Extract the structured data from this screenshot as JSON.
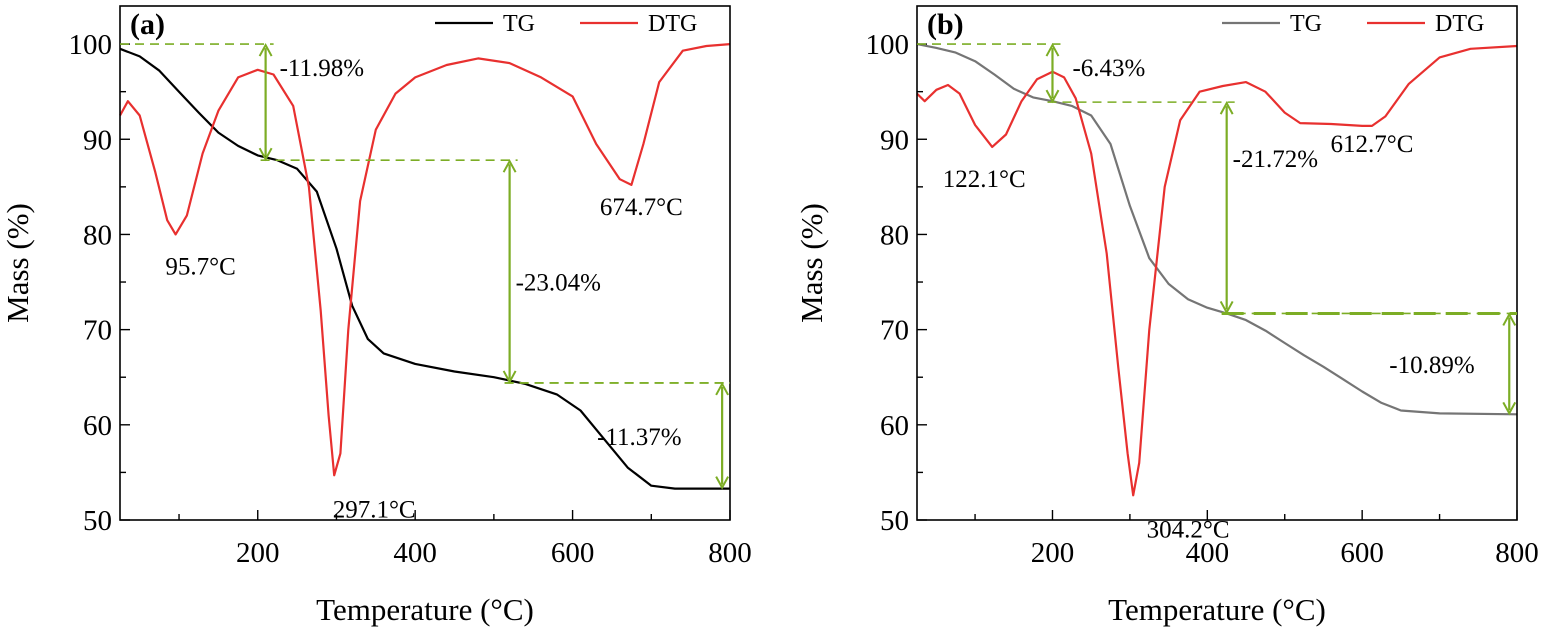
{
  "chart_data": [
    {
      "type": "line",
      "panel_label": "(a)",
      "xlabel": "Temperature (°C)",
      "ylabel": "Mass (%)",
      "xlim": [
        25,
        800
      ],
      "ylim": [
        50,
        104
      ],
      "x_ticks": [
        200,
        400,
        600,
        800
      ],
      "y_ticks": [
        50,
        60,
        70,
        80,
        90,
        100
      ],
      "grid": false,
      "legend_position": "top-right",
      "colors": {
        "TG": "#000000",
        "DTG": "#e8302f",
        "annotation": "#7cad25"
      },
      "series": [
        {
          "name": "TG",
          "axis": "left",
          "points": [
            [
              25,
              99.5
            ],
            [
              50,
              98.7
            ],
            [
              75,
              97.2
            ],
            [
              100,
              95.0
            ],
            [
              125,
              92.8
            ],
            [
              150,
              90.7
            ],
            [
              175,
              89.3
            ],
            [
              200,
              88.3
            ],
            [
              225,
              87.8
            ],
            [
              250,
              86.9
            ],
            [
              275,
              84.5
            ],
            [
              300,
              78.5
            ],
            [
              320,
              72.5
            ],
            [
              340,
              69.0
            ],
            [
              360,
              67.5
            ],
            [
              400,
              66.4
            ],
            [
              450,
              65.6
            ],
            [
              500,
              65.0
            ],
            [
              540,
              64.3
            ],
            [
              580,
              63.2
            ],
            [
              610,
              61.5
            ],
            [
              640,
              58.5
            ],
            [
              670,
              55.5
            ],
            [
              700,
              53.6
            ],
            [
              730,
              53.3
            ],
            [
              800,
              53.3
            ]
          ]
        },
        {
          "name": "DTG",
          "axis": "right-relative",
          "points": [
            [
              25,
              92.5
            ],
            [
              35,
              94.0
            ],
            [
              50,
              92.5
            ],
            [
              70,
              86.5
            ],
            [
              85,
              81.5
            ],
            [
              95.7,
              80.0
            ],
            [
              110,
              82.0
            ],
            [
              130,
              88.5
            ],
            [
              150,
              93.0
            ],
            [
              175,
              96.5
            ],
            [
              200,
              97.3
            ],
            [
              220,
              96.8
            ],
            [
              245,
              93.5
            ],
            [
              265,
              85.0
            ],
            [
              280,
              72.0
            ],
            [
              290,
              61.0
            ],
            [
              297.1,
              54.7
            ],
            [
              305,
              57.0
            ],
            [
              315,
              70.0
            ],
            [
              330,
              83.5
            ],
            [
              350,
              91.0
            ],
            [
              375,
              94.8
            ],
            [
              400,
              96.5
            ],
            [
              440,
              97.8
            ],
            [
              480,
              98.5
            ],
            [
              520,
              98.0
            ],
            [
              560,
              96.5
            ],
            [
              600,
              94.5
            ],
            [
              630,
              89.5
            ],
            [
              660,
              85.8
            ],
            [
              674.7,
              85.2
            ],
            [
              690,
              89.5
            ],
            [
              710,
              96.0
            ],
            [
              740,
              99.3
            ],
            [
              770,
              99.8
            ],
            [
              800,
              100.0
            ]
          ]
        }
      ],
      "annotations": [
        {
          "text": "95.7°C",
          "x": 95.7
        },
        {
          "text": "297.1°C",
          "x": 297.1
        },
        {
          "text": "674.7°C",
          "x": 674.7
        },
        {
          "text": "-11.98%",
          "from": 100.0,
          "to": 87.8,
          "x": 210
        },
        {
          "text": "-23.04%",
          "from": 87.8,
          "to": 64.4,
          "x": 520
        },
        {
          "text": "-11.37%",
          "from": 64.4,
          "to": 53.3,
          "x": 790
        }
      ]
    },
    {
      "type": "line",
      "panel_label": "(b)",
      "xlabel": "Temperature (°C)",
      "ylabel": "Mass (%)",
      "xlim": [
        25,
        800
      ],
      "ylim": [
        50,
        104
      ],
      "x_ticks": [
        200,
        400,
        600,
        800
      ],
      "y_ticks": [
        50,
        60,
        70,
        80,
        90,
        100
      ],
      "grid": false,
      "legend_position": "top-right",
      "colors": {
        "TG": "#757575",
        "DTG": "#e8302f",
        "annotation": "#7cad25"
      },
      "series": [
        {
          "name": "TG",
          "axis": "left",
          "points": [
            [
              25,
              100.0
            ],
            [
              50,
              99.6
            ],
            [
              75,
              99.1
            ],
            [
              100,
              98.2
            ],
            [
              125,
              96.8
            ],
            [
              150,
              95.3
            ],
            [
              175,
              94.4
            ],
            [
              200,
              94.0
            ],
            [
              225,
              93.5
            ],
            [
              250,
              92.5
            ],
            [
              275,
              89.5
            ],
            [
              300,
              83.0
            ],
            [
              325,
              77.5
            ],
            [
              350,
              74.8
            ],
            [
              375,
              73.2
            ],
            [
              400,
              72.3
            ],
            [
              425,
              71.7
            ],
            [
              450,
              71.0
            ],
            [
              475,
              69.9
            ],
            [
              500,
              68.6
            ],
            [
              525,
              67.3
            ],
            [
              550,
              66.1
            ],
            [
              575,
              64.8
            ],
            [
              600,
              63.5
            ],
            [
              625,
              62.3
            ],
            [
              650,
              61.5
            ],
            [
              700,
              61.2
            ],
            [
              800,
              61.1
            ]
          ]
        },
        {
          "name": "DTG",
          "axis": "right-relative",
          "points": [
            [
              25,
              94.8
            ],
            [
              35,
              94.0
            ],
            [
              50,
              95.2
            ],
            [
              65,
              95.7
            ],
            [
              80,
              94.8
            ],
            [
              100,
              91.5
            ],
            [
              122.1,
              89.2
            ],
            [
              140,
              90.5
            ],
            [
              160,
              94.0
            ],
            [
              180,
              96.3
            ],
            [
              200,
              97.1
            ],
            [
              215,
              96.5
            ],
            [
              230,
              94.3
            ],
            [
              250,
              88.5
            ],
            [
              270,
              78.0
            ],
            [
              285,
              66.0
            ],
            [
              297,
              57.0
            ],
            [
              304.2,
              52.6
            ],
            [
              312,
              56.0
            ],
            [
              325,
              70.0
            ],
            [
              345,
              85.0
            ],
            [
              365,
              92.0
            ],
            [
              390,
              95.0
            ],
            [
              420,
              95.6
            ],
            [
              450,
              96.0
            ],
            [
              475,
              95.0
            ],
            [
              500,
              92.8
            ],
            [
              520,
              91.7
            ],
            [
              560,
              91.6
            ],
            [
              600,
              91.4
            ],
            [
              612.7,
              91.4
            ],
            [
              630,
              92.4
            ],
            [
              660,
              95.8
            ],
            [
              700,
              98.6
            ],
            [
              740,
              99.5
            ],
            [
              800,
              99.8
            ]
          ]
        }
      ],
      "annotations": [
        {
          "text": "122.1°C",
          "x": 122.1
        },
        {
          "text": "304.2°C",
          "x": 304.2
        },
        {
          "text": "612.7°C",
          "x": 612.7
        },
        {
          "text": "-6.43%",
          "from": 100.0,
          "to": 93.9,
          "x": 200
        },
        {
          "text": "-21.72%",
          "from": 93.9,
          "to": 71.7,
          "x": 425
        },
        {
          "text": "-10.89%",
          "from": 71.7,
          "to": 61.1,
          "x": 790
        }
      ]
    }
  ]
}
